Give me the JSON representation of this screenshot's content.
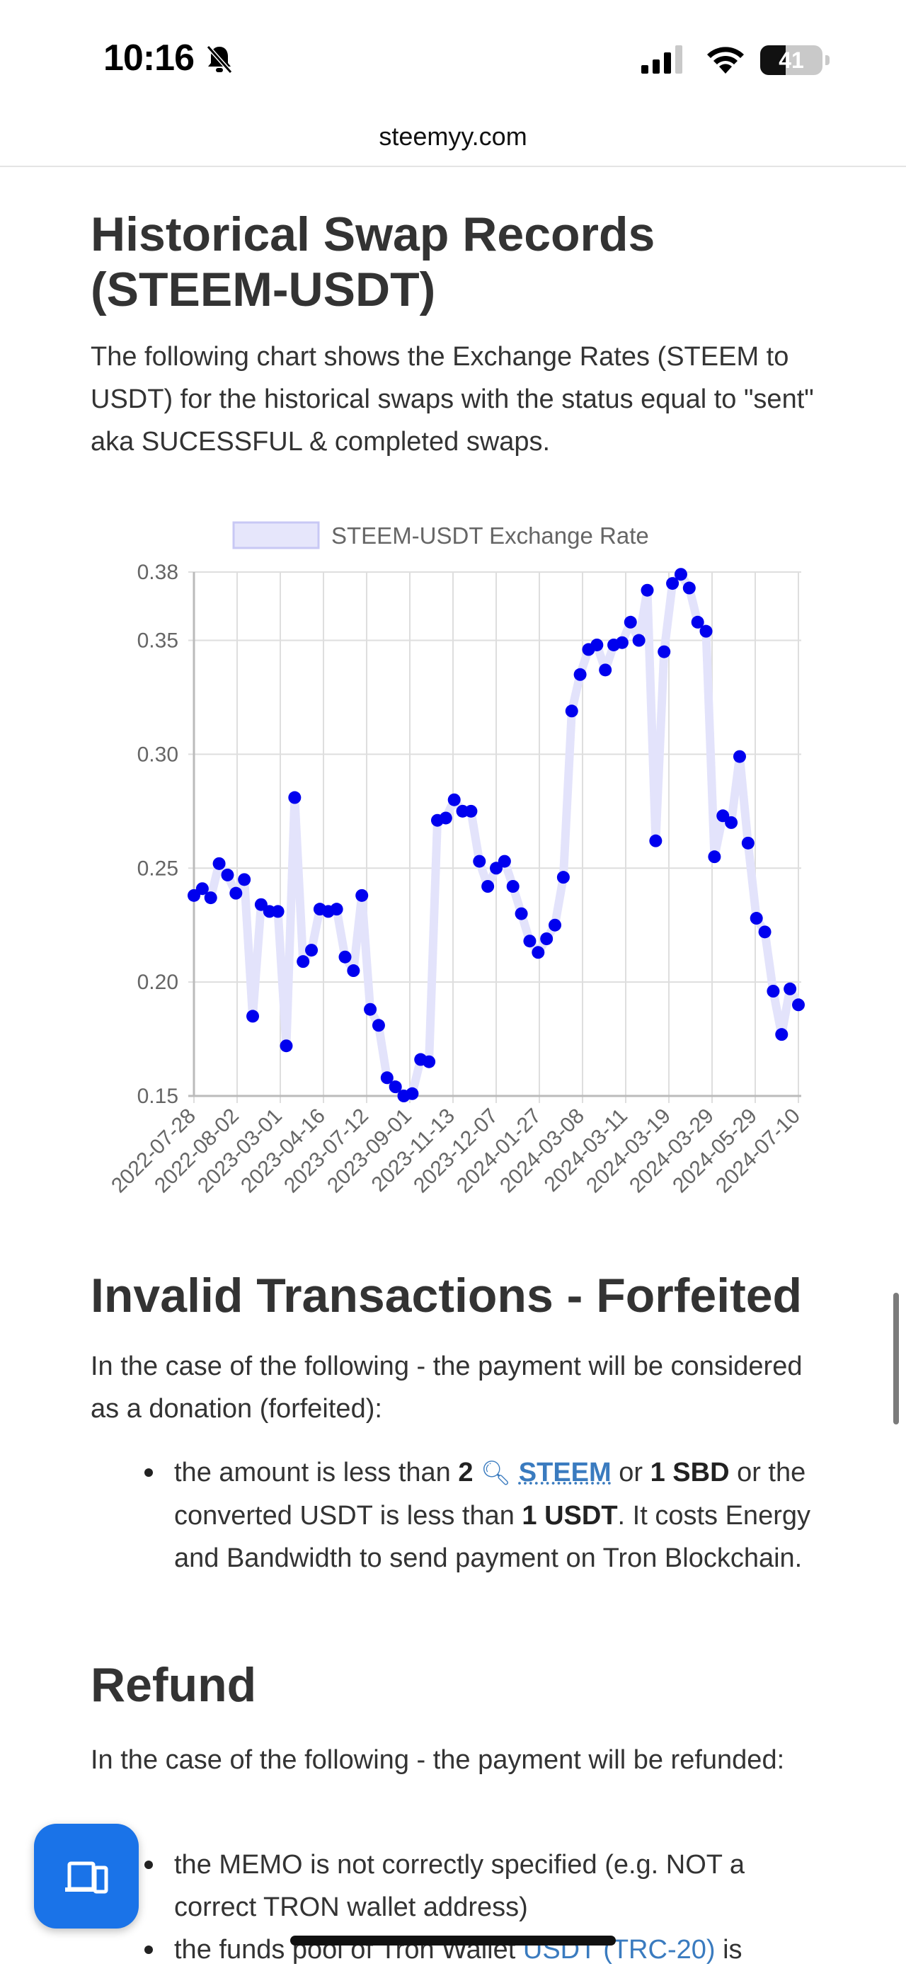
{
  "status_bar": {
    "time": "10:16",
    "battery": "41"
  },
  "browser": {
    "url": "steemyy.com"
  },
  "section_swaps": {
    "title": "Historical Swap Records (STEEM-USDT)",
    "description": "The following chart shows the Exchange Rates (STEEM to USDT) for the historical swaps with the status equal to \"sent\" aka SUCESSFUL & completed swaps."
  },
  "chart_data": {
    "type": "line",
    "legend": "STEEM-USDT Exchange Rate",
    "legend_position": "top",
    "grid": true,
    "line_color": "#e3e3fb",
    "point_color": "#0000ee",
    "ylim": [
      0.15,
      0.38
    ],
    "y_ticks": [
      "0.38",
      "0.35",
      "0.30",
      "0.25",
      "0.20",
      "0.15"
    ],
    "x_tick_labels": [
      "2022-07-28",
      "2022-08-02",
      "2023-03-01",
      "2023-04-16",
      "2023-07-12",
      "2023-09-01",
      "2023-11-13",
      "2023-12-07",
      "2024-01-27",
      "2024-03-08",
      "2024-03-11",
      "2024-03-19",
      "2024-03-29",
      "2024-05-29",
      "2024-07-10"
    ],
    "series": [
      {
        "values": [
          0.238,
          0.241,
          0.237,
          0.252,
          0.247,
          0.239,
          0.245,
          0.185,
          0.234,
          0.231,
          0.231,
          0.172,
          0.281,
          0.209,
          0.214,
          0.232,
          0.231,
          0.232,
          0.211,
          0.205,
          0.238,
          0.188,
          0.181,
          0.158,
          0.154,
          0.15,
          0.151,
          0.166,
          0.165,
          0.271,
          0.272,
          0.28,
          0.275,
          0.275,
          0.253,
          0.242,
          0.25,
          0.253,
          0.242,
          0.23,
          0.218,
          0.213,
          0.219,
          0.225,
          0.246,
          0.319,
          0.335,
          0.346,
          0.348,
          0.337,
          0.348,
          0.349,
          0.358,
          0.35,
          0.372,
          0.262,
          0.345,
          0.375,
          0.379,
          0.373,
          0.358,
          0.354,
          0.255,
          0.273,
          0.27,
          0.299,
          0.261,
          0.228,
          0.222,
          0.196,
          0.177,
          0.197,
          0.19
        ]
      }
    ]
  },
  "section_invalid": {
    "title": "Invalid Transactions - Forfeited",
    "description": "In the case of the following - the payment will be considered as a donation (forfeited):",
    "item1": {
      "t1": "the amount is less than ",
      "amount": "2",
      "token": "STEEM",
      "t2": " or ",
      "sbd": "1 SBD",
      "t3": " or the converted USDT is less than ",
      "usdt": "1 USDT",
      "t4": ". It costs Energy and Bandwidth to send payment on Tron Blockchain."
    }
  },
  "section_refund": {
    "title": "Refund",
    "description": "In the case of the following - the payment will be refunded:",
    "item1": "the MEMO is not correctly specified (e.g. NOT a correct TRON wallet address)",
    "item2_a": "the funds pool of Tron Wallet ",
    "item2_link": "USDT (TRC-20)",
    "item2_b": " is"
  },
  "icons": {
    "fab": "devices-icon",
    "token_search": "magnifier-icon"
  }
}
